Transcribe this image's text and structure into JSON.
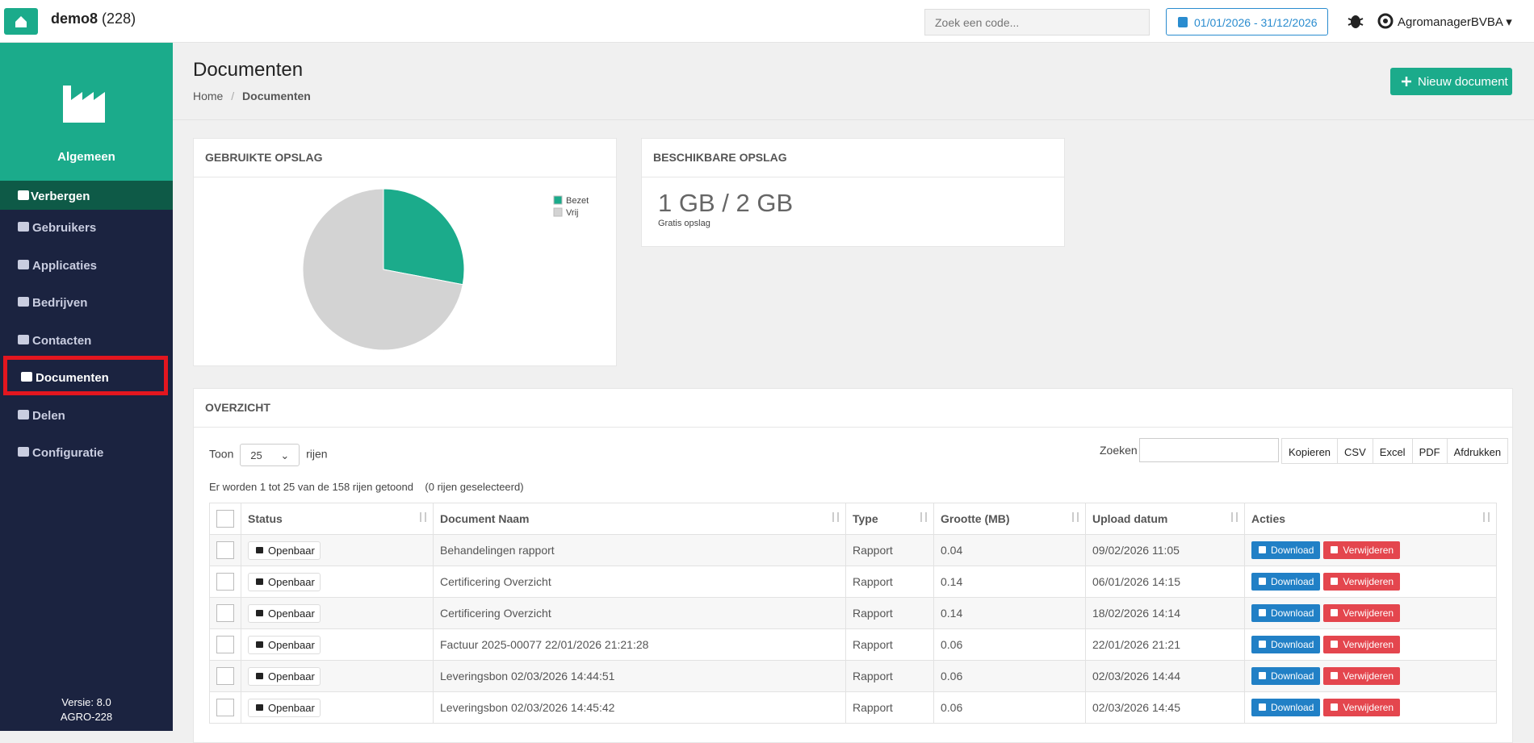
{
  "header": {
    "app": "demo8",
    "count": "(228)",
    "search_placeholder": "Zoek een code...",
    "date_range": "01/01/2026 - 31/12/2026",
    "user": "AgromanagerBVBA"
  },
  "sidebar": {
    "section": "Algemeen",
    "toggle": "Verbergen",
    "items": [
      "Gebruikers",
      "Applicaties",
      "Bedrijven",
      "Contacten",
      "Documenten",
      "Delen",
      "Configuratie"
    ],
    "active": "Documenten",
    "version": "Versie: 8.0",
    "build": "AGRO-228"
  },
  "page": {
    "title": "Documenten",
    "breadcrumb": [
      "Home",
      "Documenten"
    ],
    "new_button": "Nieuw document"
  },
  "chart_data": {
    "type": "pie",
    "title": "GEBRUIKTE OPSLAG",
    "categories": [
      "Bezet",
      "Vrij"
    ],
    "values": [
      28,
      72
    ],
    "colors": [
      "#1bab8b",
      "#d3d3d3"
    ]
  },
  "storage_available": {
    "title": "BESCHIKBARE OPSLAG",
    "value": "1 GB / 2 GB",
    "note": "Gratis opslag"
  },
  "overview": {
    "title": "OVERZICHT",
    "show_label": "Toon",
    "page_size": "25",
    "rows_label": "rijen",
    "search_label": "Zoeken",
    "export_buttons": [
      "Kopieren",
      "CSV",
      "Excel",
      "PDF",
      "Afdrukken"
    ],
    "info": "Er worden 1 tot 25 van de 158 rijen getoond",
    "selected": "(0 rijen geselecteerd)",
    "columns": [
      "Status",
      "Document Naam",
      "Type",
      "Grootte (MB)",
      "Upload datum",
      "Acties"
    ],
    "actions": [
      "Download",
      "Verwijderen"
    ],
    "rows": [
      [
        "Openbaar",
        "Behandelingen rapport",
        "Rapport",
        "0.04",
        "09/02/2026 11:05"
      ],
      [
        "Openbaar",
        "Certificering Overzicht",
        "Rapport",
        "0.14",
        "06/01/2026 14:15"
      ],
      [
        "Openbaar",
        "Certificering Overzicht",
        "Rapport",
        "0.14",
        "18/02/2026 14:14"
      ],
      [
        "Openbaar",
        "Factuur 2025-00077 22/01/2026 21:21:28",
        "Rapport",
        "0.06",
        "22/01/2026 21:21"
      ],
      [
        "Openbaar",
        "Leveringsbon 02/03/2026 14:44:51",
        "Rapport",
        "0.06",
        "02/03/2026 14:44"
      ],
      [
        "Openbaar",
        "Leveringsbon 02/03/2026 14:45:42",
        "Rapport",
        "0.06",
        "02/03/2026 14:45"
      ]
    ]
  }
}
